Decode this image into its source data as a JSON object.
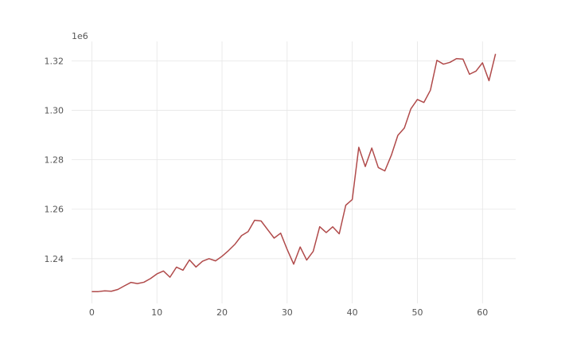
{
  "chart_data": {
    "type": "line",
    "title": "",
    "xlabel": "",
    "ylabel": "",
    "offset_text": "1e6",
    "xlim": [
      -3.1,
      65.1
    ],
    "ylim": [
      1221890,
      1327890
    ],
    "xticks": [
      0,
      10,
      20,
      30,
      40,
      50,
      60
    ],
    "xtick_labels": [
      "0",
      "10",
      "20",
      "30",
      "40",
      "50",
      "60"
    ],
    "yticks": [
      1240000,
      1260000,
      1280000,
      1300000,
      1320000
    ],
    "ytick_labels": [
      "1.24",
      "1.26",
      "1.28",
      "1.30",
      "1.32"
    ],
    "grid": true,
    "legend": "none",
    "color": "#b04a4a",
    "series": [
      {
        "x": [
          0,
          1,
          2,
          3,
          4,
          5,
          6,
          7,
          8,
          9,
          10,
          11,
          12,
          13,
          14,
          15,
          16,
          17,
          18,
          19,
          20,
          21,
          22,
          23,
          24,
          25,
          26,
          27,
          28,
          29,
          30,
          31,
          32,
          33,
          34,
          35,
          36,
          37,
          38,
          39,
          40,
          41,
          42,
          43,
          44,
          45,
          46,
          47,
          48,
          49,
          50,
          51,
          52,
          53,
          54,
          55,
          56,
          57,
          58,
          59,
          60,
          61,
          62
        ],
        "values": [
          1226640,
          1226660,
          1226970,
          1226800,
          1227530,
          1228980,
          1230380,
          1229900,
          1230450,
          1231910,
          1233820,
          1234990,
          1232480,
          1236560,
          1235320,
          1239490,
          1236610,
          1238950,
          1239990,
          1239090,
          1240960,
          1243270,
          1245860,
          1249320,
          1250940,
          1255530,
          1255240,
          1251750,
          1248310,
          1250300,
          1243720,
          1237770,
          1244720,
          1239420,
          1242940,
          1252910,
          1250560,
          1252870,
          1250040,
          1261600,
          1263920,
          1285030,
          1277250,
          1284740,
          1276840,
          1275490,
          1281830,
          1289870,
          1292850,
          1300620,
          1304390,
          1303190,
          1308140,
          1320240,
          1318690,
          1319410,
          1320930,
          1320730,
          1314600,
          1315870,
          1319230,
          1311990,
          1322820
        ]
      }
    ]
  }
}
